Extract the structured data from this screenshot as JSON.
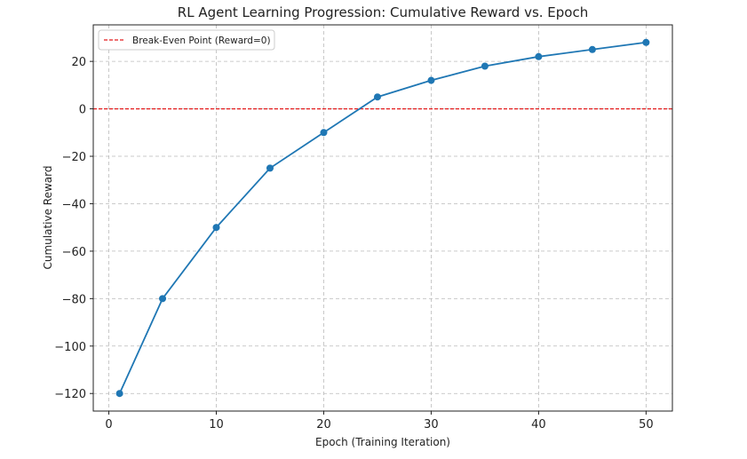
{
  "chart_data": {
    "type": "line",
    "title": "RL Agent Learning Progression: Cumulative Reward vs. Epoch",
    "xlabel": "Epoch (Training Iteration)",
    "ylabel": "Cumulative Reward",
    "x": [
      1,
      5,
      10,
      15,
      20,
      25,
      30,
      35,
      40,
      45,
      50
    ],
    "series": [
      {
        "values": [
          -120,
          -80,
          -50,
          -25,
          -10,
          5,
          12,
          18,
          22,
          25,
          28
        ],
        "color": "#1f77b4",
        "marker": "circle"
      }
    ],
    "reference_lines": [
      {
        "name": "Break-Even Point (Reward=0)",
        "y": 0,
        "color": "#e41a1c",
        "style": "dashed"
      }
    ],
    "xlim": [
      -1.45,
      52.45
    ],
    "ylim": [
      -127.4,
      35.4
    ],
    "xticks": [
      0,
      10,
      20,
      30,
      40,
      50
    ],
    "yticks": [
      -120,
      -100,
      -80,
      -60,
      -40,
      -20,
      0,
      20
    ],
    "grid": true,
    "legend_placement": "top-left"
  }
}
